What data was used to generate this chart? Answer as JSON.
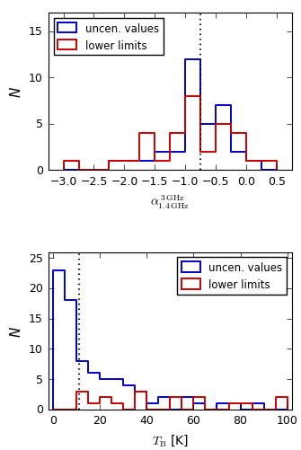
{
  "top": {
    "ylabel": "N",
    "xlim": [
      -3.25,
      0.75
    ],
    "ylim": [
      0,
      17
    ],
    "yticks": [
      0,
      5,
      10,
      15
    ],
    "xticks": [
      -3.0,
      -2.5,
      -2.0,
      -1.5,
      -1.0,
      -0.5,
      0.0,
      0.5
    ],
    "dashed_x": -0.75,
    "bin_edges": [
      -3.0,
      -2.75,
      -2.5,
      -2.25,
      -2.0,
      -1.75,
      -1.5,
      -1.25,
      -1.0,
      -0.75,
      -0.5,
      -0.25,
      0.0,
      0.25,
      0.5
    ],
    "blue_values": [
      0,
      0,
      0,
      1,
      1,
      1,
      2,
      2,
      12,
      5,
      7,
      2,
      1,
      0
    ],
    "red_values": [
      1,
      0,
      0,
      1,
      1,
      4,
      1,
      4,
      8,
      2,
      5,
      4,
      1,
      1
    ],
    "blue_color": "#0000cc",
    "red_color": "#cc0000",
    "legend_labels": [
      "uncen. values",
      "lower limits"
    ]
  },
  "bot": {
    "ylabel": "N",
    "xlim": [
      -2,
      102
    ],
    "ylim": [
      0,
      26
    ],
    "yticks": [
      0,
      5,
      10,
      15,
      20,
      25
    ],
    "xticks": [
      0,
      20,
      40,
      60,
      80,
      100
    ],
    "dashed_x": 11,
    "bin_edges": [
      0,
      5,
      10,
      15,
      20,
      25,
      30,
      35,
      40,
      45,
      50,
      55,
      60,
      65,
      70,
      75,
      80,
      85,
      90,
      95,
      100
    ],
    "blue_values": [
      23,
      18,
      8,
      6,
      5,
      5,
      4,
      3,
      1,
      2,
      0,
      2,
      1,
      0,
      1,
      1,
      0,
      1,
      0,
      0
    ],
    "red_values": [
      0,
      0,
      3,
      1,
      2,
      1,
      0,
      3,
      0,
      0,
      2,
      0,
      2,
      0,
      0,
      1,
      1,
      0,
      0,
      2
    ],
    "blue_color": "#0000cc",
    "red_color": "#cc0000",
    "legend_labels": [
      "uncen. values",
      "lower limits"
    ]
  },
  "fig": {
    "facecolor": "#e8e8e8",
    "axes_facecolor": "#ffffff",
    "linewidth_hist": 1.4,
    "dpi": 100,
    "figsize": [
      3.35,
      5.02
    ]
  }
}
